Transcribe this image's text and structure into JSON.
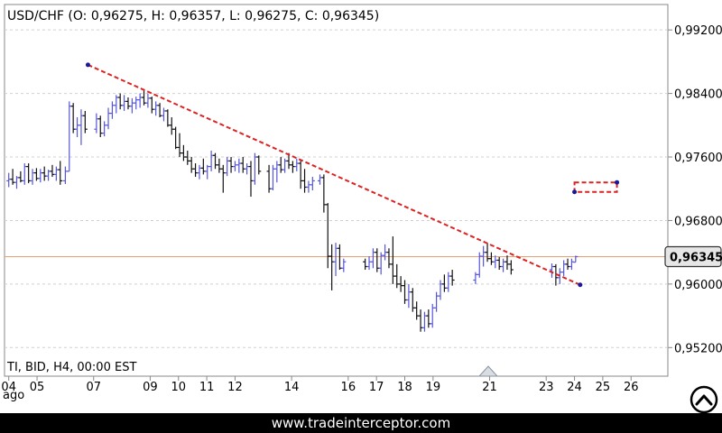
{
  "title": "USD/CHF (O: 0,96275, H: 0,96357, L: 0,96275, C: 0,96345)",
  "info": "TI, BID, H4, 00:00 EST",
  "footer_url": "www.tradeinterceptor.com",
  "month_label": "ago",
  "colors": {
    "up": "#5555dd",
    "down": "#111111",
    "trendline": "#dd2222",
    "price_line": "#e8a070",
    "grid": "#d0d0d0"
  },
  "chart_data": {
    "type": "ohlc",
    "symbol": "USD/CHF",
    "timeframe": "H4",
    "ylim": [
      0.9484,
      0.9952
    ],
    "xlim": [
      3.85,
      27.3
    ],
    "y_ticks": [
      0.952,
      0.96,
      0.968,
      0.976,
      0.984,
      0.992
    ],
    "y_tick_labels": [
      "0,95200",
      "0,96000",
      "0,96800",
      "0,97600",
      "0,98400",
      "0,99200"
    ],
    "x_ticks": [
      4,
      5,
      7,
      9,
      10,
      11,
      12,
      14,
      16,
      17,
      18,
      19,
      21,
      23,
      24,
      25,
      26
    ],
    "x_tick_labels": [
      "04",
      "05",
      "07",
      "09",
      "10",
      "11",
      "12",
      "14",
      "16",
      "17",
      "18",
      "19",
      "21",
      "23",
      "24",
      "25",
      "26"
    ],
    "last_price": 0.96345,
    "last_price_label": "0,96345",
    "trendline": {
      "start": [
        6.8,
        0.9876
      ],
      "end": [
        24.2,
        0.9599
      ]
    },
    "rectangle": {
      "x": [
        24.0,
        25.5
      ],
      "y": [
        0.9716,
        0.9728
      ]
    },
    "candles": [
      [
        4.0,
        0.973,
        0.974,
        0.9722,
        0.9732
      ],
      [
        4.14,
        0.9732,
        0.9745,
        0.9725,
        0.9728
      ],
      [
        4.28,
        0.9728,
        0.9736,
        0.972,
        0.9734
      ],
      [
        4.42,
        0.9734,
        0.9742,
        0.9728,
        0.973
      ],
      [
        4.56,
        0.973,
        0.9752,
        0.9725,
        0.9748
      ],
      [
        4.7,
        0.9748,
        0.9752,
        0.9727,
        0.973
      ],
      [
        4.84,
        0.973,
        0.9745,
        0.9725,
        0.974
      ],
      [
        4.98,
        0.974,
        0.9746,
        0.973,
        0.9733
      ],
      [
        5.12,
        0.9733,
        0.9745,
        0.9728,
        0.974
      ],
      [
        5.26,
        0.974,
        0.9748,
        0.973,
        0.9736
      ],
      [
        5.4,
        0.9736,
        0.9744,
        0.973,
        0.9742
      ],
      [
        5.54,
        0.9742,
        0.975,
        0.9735,
        0.9738
      ],
      [
        5.68,
        0.9738,
        0.9748,
        0.973,
        0.9744
      ],
      [
        5.82,
        0.9744,
        0.9755,
        0.9725,
        0.973
      ],
      [
        6.0,
        0.973,
        0.9748,
        0.9726,
        0.9742
      ],
      [
        6.14,
        0.9742,
        0.983,
        0.9742,
        0.9824
      ],
      [
        6.28,
        0.9824,
        0.9828,
        0.979,
        0.9795
      ],
      [
        6.42,
        0.9795,
        0.981,
        0.9785,
        0.98
      ],
      [
        6.56,
        0.98,
        0.982,
        0.9775,
        0.9812
      ],
      [
        6.7,
        0.9812,
        0.9818,
        0.979,
        0.9795
      ],
      [
        7.1,
        0.9795,
        0.9815,
        0.979,
        0.9808
      ],
      [
        7.24,
        0.9808,
        0.9812,
        0.9785,
        0.979
      ],
      [
        7.38,
        0.979,
        0.9805,
        0.9786,
        0.98
      ],
      [
        7.52,
        0.98,
        0.9822,
        0.9795,
        0.9815
      ],
      [
        7.66,
        0.9815,
        0.983,
        0.9808,
        0.9825
      ],
      [
        7.8,
        0.9825,
        0.9838,
        0.9815,
        0.9835
      ],
      [
        7.94,
        0.9835,
        0.984,
        0.982,
        0.9825
      ],
      [
        8.08,
        0.9825,
        0.9838,
        0.9818,
        0.983
      ],
      [
        8.22,
        0.983,
        0.9835,
        0.982,
        0.9824
      ],
      [
        8.36,
        0.9824,
        0.9834,
        0.9815,
        0.9828
      ],
      [
        8.5,
        0.9828,
        0.9836,
        0.982,
        0.9832
      ],
      [
        8.64,
        0.9832,
        0.984,
        0.9822,
        0.9835
      ],
      [
        8.78,
        0.9835,
        0.9845,
        0.9825,
        0.9828
      ],
      [
        8.92,
        0.9828,
        0.984,
        0.9822,
        0.9834
      ],
      [
        9.06,
        0.9834,
        0.9836,
        0.9815,
        0.982
      ],
      [
        9.2,
        0.982,
        0.983,
        0.9812,
        0.9825
      ],
      [
        9.34,
        0.9825,
        0.9828,
        0.981,
        0.9812
      ],
      [
        9.48,
        0.9812,
        0.9822,
        0.9805,
        0.9818
      ],
      [
        9.62,
        0.9818,
        0.982,
        0.9798,
        0.98
      ],
      [
        9.76,
        0.98,
        0.981,
        0.9788,
        0.9795
      ],
      [
        9.9,
        0.9795,
        0.9798,
        0.977,
        0.9772
      ],
      [
        10.04,
        0.9772,
        0.979,
        0.976,
        0.9765
      ],
      [
        10.18,
        0.9765,
        0.9775,
        0.9755,
        0.976
      ],
      [
        10.32,
        0.976,
        0.9768,
        0.975,
        0.9755
      ],
      [
        10.46,
        0.9755,
        0.976,
        0.974,
        0.9745
      ],
      [
        10.6,
        0.9745,
        0.9752,
        0.9735,
        0.974
      ],
      [
        10.74,
        0.974,
        0.975,
        0.9732,
        0.9746
      ],
      [
        10.88,
        0.9746,
        0.9758,
        0.9738,
        0.9742
      ],
      [
        11.02,
        0.9742,
        0.975,
        0.9732,
        0.9748
      ],
      [
        11.16,
        0.9748,
        0.9768,
        0.9742,
        0.9762
      ],
      [
        11.3,
        0.9762,
        0.9765,
        0.9745,
        0.975
      ],
      [
        11.44,
        0.975,
        0.9758,
        0.974,
        0.9745
      ],
      [
        11.58,
        0.9745,
        0.975,
        0.9715,
        0.974
      ],
      [
        11.72,
        0.974,
        0.976,
        0.9736,
        0.9755
      ],
      [
        11.86,
        0.9755,
        0.976,
        0.974,
        0.9748
      ],
      [
        12.0,
        0.9748,
        0.9755,
        0.9742,
        0.975
      ],
      [
        12.14,
        0.975,
        0.9758,
        0.974,
        0.9752
      ],
      [
        12.28,
        0.9752,
        0.976,
        0.974,
        0.9745
      ],
      [
        12.42,
        0.9745,
        0.9752,
        0.9738,
        0.9748
      ],
      [
        12.56,
        0.9748,
        0.9755,
        0.971,
        0.973
      ],
      [
        12.7,
        0.973,
        0.9765,
        0.9725,
        0.976
      ],
      [
        12.84,
        0.976,
        0.9762,
        0.9738,
        0.9742
      ],
      [
        13.2,
        0.9742,
        0.975,
        0.9715,
        0.972
      ],
      [
        13.34,
        0.972,
        0.975,
        0.9718,
        0.9745
      ],
      [
        13.48,
        0.9745,
        0.9755,
        0.9728,
        0.975
      ],
      [
        13.62,
        0.975,
        0.976,
        0.974,
        0.9744
      ],
      [
        13.76,
        0.9744,
        0.9758,
        0.974,
        0.9755
      ],
      [
        13.9,
        0.9755,
        0.9765,
        0.9745,
        0.975
      ],
      [
        14.04,
        0.975,
        0.9755,
        0.974,
        0.9748
      ],
      [
        14.18,
        0.9748,
        0.9758,
        0.9742,
        0.9752
      ],
      [
        14.32,
        0.9752,
        0.9755,
        0.972,
        0.973
      ],
      [
        14.46,
        0.973,
        0.9745,
        0.9715,
        0.9722
      ],
      [
        14.6,
        0.9722,
        0.973,
        0.9715,
        0.9725
      ],
      [
        14.74,
        0.9725,
        0.9735,
        0.9718,
        0.973
      ],
      [
        15.0,
        0.973,
        0.9738,
        0.9725,
        0.9734
      ],
      [
        15.14,
        0.9734,
        0.9738,
        0.969,
        0.97
      ],
      [
        15.28,
        0.97,
        0.9702,
        0.962,
        0.9635
      ],
      [
        15.42,
        0.9635,
        0.965,
        0.9592,
        0.9628
      ],
      [
        15.56,
        0.9628,
        0.9652,
        0.961,
        0.9645
      ],
      [
        15.7,
        0.9645,
        0.965,
        0.9618,
        0.962
      ],
      [
        15.84,
        0.962,
        0.9632,
        0.9615,
        0.9628
      ],
      [
        16.6,
        0.9628,
        0.9632,
        0.9618,
        0.9622
      ],
      [
        16.74,
        0.9622,
        0.9635,
        0.9618,
        0.9628
      ],
      [
        16.88,
        0.9628,
        0.9645,
        0.962,
        0.964
      ],
      [
        17.02,
        0.964,
        0.9645,
        0.9615,
        0.962
      ],
      [
        17.16,
        0.962,
        0.964,
        0.9612,
        0.9636
      ],
      [
        17.3,
        0.9636,
        0.965,
        0.963,
        0.964
      ],
      [
        17.44,
        0.964,
        0.9645,
        0.962,
        0.9625
      ],
      [
        17.58,
        0.9625,
        0.966,
        0.96,
        0.961
      ],
      [
        17.72,
        0.961,
        0.9625,
        0.9595,
        0.96
      ],
      [
        17.86,
        0.96,
        0.961,
        0.959,
        0.9598
      ],
      [
        18.0,
        0.9598,
        0.9605,
        0.9575,
        0.958
      ],
      [
        18.14,
        0.958,
        0.96,
        0.957,
        0.959
      ],
      [
        18.28,
        0.959,
        0.9595,
        0.9565,
        0.957
      ],
      [
        18.42,
        0.957,
        0.9578,
        0.9555,
        0.956
      ],
      [
        18.56,
        0.956,
        0.9568,
        0.954,
        0.9545
      ],
      [
        18.7,
        0.9545,
        0.9565,
        0.954,
        0.956
      ],
      [
        18.84,
        0.956,
        0.9568,
        0.9545,
        0.955
      ],
      [
        18.98,
        0.955,
        0.9575,
        0.9545,
        0.957
      ],
      [
        19.12,
        0.957,
        0.959,
        0.9565,
        0.9585
      ],
      [
        19.26,
        0.9585,
        0.9605,
        0.958,
        0.96
      ],
      [
        19.4,
        0.96,
        0.9612,
        0.959,
        0.9595
      ],
      [
        19.54,
        0.9595,
        0.9615,
        0.959,
        0.961
      ],
      [
        19.68,
        0.961,
        0.9618,
        0.9598,
        0.9605
      ],
      [
        20.5,
        0.9605,
        0.9615,
        0.96,
        0.9612
      ],
      [
        20.64,
        0.9612,
        0.964,
        0.9608,
        0.9635
      ],
      [
        20.78,
        0.9635,
        0.9648,
        0.9622,
        0.964
      ],
      [
        20.92,
        0.964,
        0.9652,
        0.9628,
        0.9632
      ],
      [
        21.06,
        0.9632,
        0.964,
        0.9624,
        0.9628
      ],
      [
        21.2,
        0.9628,
        0.9636,
        0.962,
        0.963
      ],
      [
        21.34,
        0.963,
        0.9634,
        0.9618,
        0.9622
      ],
      [
        21.48,
        0.9622,
        0.9632,
        0.9615,
        0.9628
      ],
      [
        21.62,
        0.9628,
        0.9636,
        0.9618,
        0.9625
      ],
      [
        21.76,
        0.9625,
        0.963,
        0.9612,
        0.9618
      ],
      [
        23.2,
        0.9618,
        0.9626,
        0.9608,
        0.9622
      ],
      [
        23.34,
        0.9622,
        0.9625,
        0.9598,
        0.9608
      ],
      [
        23.48,
        0.9608,
        0.962,
        0.96,
        0.9615
      ],
      [
        23.62,
        0.9615,
        0.963,
        0.961,
        0.9625
      ],
      [
        23.76,
        0.9625,
        0.9632,
        0.9618,
        0.9622
      ],
      [
        23.9,
        0.9622,
        0.9632,
        0.9618,
        0.9628
      ],
      [
        24.04,
        0.96275,
        0.96357,
        0.96275,
        0.96345
      ]
    ]
  }
}
